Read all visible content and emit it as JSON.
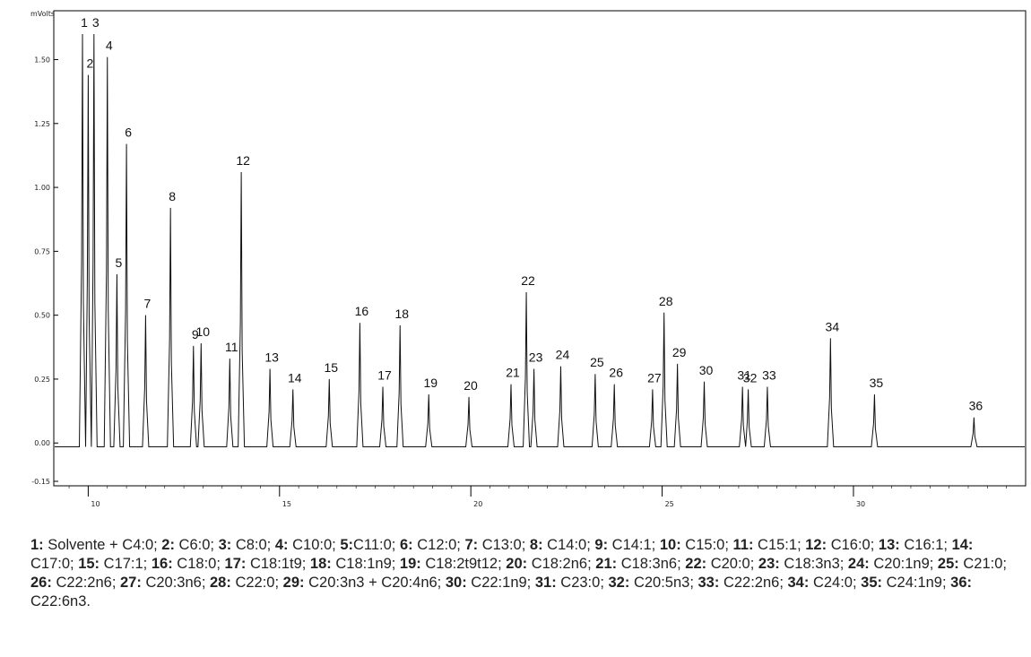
{
  "chart_data": {
    "type": "line",
    "ylabel": "mVolts",
    "ylim": [
      -0.15,
      1.6
    ],
    "xlim": [
      9.1,
      34.5
    ],
    "y_ticks": [
      {
        "value": 1.5,
        "label": "1.50"
      },
      {
        "value": 1.25,
        "label": "1.25"
      },
      {
        "value": 1.0,
        "label": "1.00"
      },
      {
        "value": 0.75,
        "label": "0.75"
      },
      {
        "value": 0.5,
        "label": "0.50"
      },
      {
        "value": 0.25,
        "label": "0.25"
      },
      {
        "value": 0.0,
        "label": "0.00"
      },
      {
        "value": -0.15,
        "label": "-0.15"
      }
    ],
    "x_ticks": [
      {
        "value": 10,
        "label": "10"
      },
      {
        "value": 15,
        "label": "15"
      },
      {
        "value": 20,
        "label": "20"
      },
      {
        "value": 25,
        "label": "25"
      },
      {
        "value": 30,
        "label": "30"
      }
    ],
    "baseline": -0.015,
    "peaks": [
      {
        "label": "1",
        "x": 9.85,
        "y": 1.6
      },
      {
        "label": "2",
        "x": 10.0,
        "y": 1.44
      },
      {
        "label": "3",
        "x": 10.15,
        "y": 1.6
      },
      {
        "label": "4",
        "x": 10.5,
        "y": 1.51
      },
      {
        "label": "5",
        "x": 10.75,
        "y": 0.66
      },
      {
        "label": "6",
        "x": 11.0,
        "y": 1.17
      },
      {
        "label": "7",
        "x": 11.5,
        "y": 0.5
      },
      {
        "label": "8",
        "x": 12.15,
        "y": 0.92
      },
      {
        "label": "9",
        "x": 12.75,
        "y": 0.38
      },
      {
        "label": "10",
        "x": 12.95,
        "y": 0.39
      },
      {
        "label": "11",
        "x": 13.7,
        "y": 0.33
      },
      {
        "label": "12",
        "x": 14.0,
        "y": 1.06
      },
      {
        "label": "13",
        "x": 14.75,
        "y": 0.29
      },
      {
        "label": "14",
        "x": 15.35,
        "y": 0.21
      },
      {
        "label": "15",
        "x": 16.3,
        "y": 0.25
      },
      {
        "label": "16",
        "x": 17.1,
        "y": 0.47
      },
      {
        "label": "17",
        "x": 17.7,
        "y": 0.22
      },
      {
        "label": "18",
        "x": 18.15,
        "y": 0.46
      },
      {
        "label": "19",
        "x": 18.9,
        "y": 0.19
      },
      {
        "label": "20",
        "x": 19.95,
        "y": 0.18
      },
      {
        "label": "21",
        "x": 21.05,
        "y": 0.23
      },
      {
        "label": "22",
        "x": 21.45,
        "y": 0.59
      },
      {
        "label": "23",
        "x": 21.65,
        "y": 0.29
      },
      {
        "label": "24",
        "x": 22.35,
        "y": 0.3
      },
      {
        "label": "25",
        "x": 23.25,
        "y": 0.27
      },
      {
        "label": "26",
        "x": 23.75,
        "y": 0.23
      },
      {
        "label": "27",
        "x": 24.75,
        "y": 0.21
      },
      {
        "label": "28",
        "x": 25.05,
        "y": 0.51
      },
      {
        "label": "29",
        "x": 25.4,
        "y": 0.31
      },
      {
        "label": "30",
        "x": 26.1,
        "y": 0.24
      },
      {
        "label": "31",
        "x": 27.1,
        "y": 0.22
      },
      {
        "label": "32",
        "x": 27.25,
        "y": 0.21
      },
      {
        "label": "33",
        "x": 27.75,
        "y": 0.22
      },
      {
        "label": "34",
        "x": 29.4,
        "y": 0.41
      },
      {
        "label": "35",
        "x": 30.55,
        "y": 0.19
      },
      {
        "label": "36",
        "x": 33.15,
        "y": 0.1
      }
    ]
  },
  "legend": [
    {
      "num": "1:",
      "text": " Solvente + C4:0; "
    },
    {
      "num": "2:",
      "text": " C6:0; "
    },
    {
      "num": "3:",
      "text": " C8:0; "
    },
    {
      "num": "4:",
      "text": " C10:0; "
    },
    {
      "num": "5:",
      "text": "C11:0; "
    },
    {
      "num": "6:",
      "text": " C12:0; "
    },
    {
      "num": "7:",
      "text": " C13:0; "
    },
    {
      "num": "8:",
      "text": " C14:0; "
    },
    {
      "num": "9:",
      "text": " C14:1; "
    },
    {
      "num": "10:",
      "text": " C15:0; "
    },
    {
      "num": "11:",
      "text": " C15:1; "
    },
    {
      "num": "12:",
      "text": " C16:0; "
    },
    {
      "num": "13:",
      "text": " C16:1; "
    },
    {
      "num": "14:",
      "text": " C17:0; "
    },
    {
      "num": "15:",
      "text": " C17:1; "
    },
    {
      "num": "16:",
      "text": " C18:0; "
    },
    {
      "num": "17:",
      "text": " C18:1t9; "
    },
    {
      "num": "18:",
      "text": " C18:1n9; "
    },
    {
      "num": "19:",
      "text": " C18:2t9t12; "
    },
    {
      "num": "20:",
      "text": " C18:2n6; "
    },
    {
      "num": "21:",
      "text": " C18:3n6; "
    },
    {
      "num": "22:",
      "text": " C20:0; "
    },
    {
      "num": "23:",
      "text": " C18:3n3; "
    },
    {
      "num": "24:",
      "text": " C20:1n9; "
    },
    {
      "num": "25:",
      "text": " C21:0; "
    },
    {
      "num": "26:",
      "text": " C22:2n6; "
    },
    {
      "num": "27:",
      "text": " C20:3n6; "
    },
    {
      "num": "28:",
      "text": " C22:0; "
    },
    {
      "num": "29:",
      "text": " C20:3n3 + C20:4n6; "
    },
    {
      "num": "30:",
      "text": " C22:1n9; "
    },
    {
      "num": "31:",
      "text": " C23:0; "
    },
    {
      "num": "32:",
      "text": " C20:5n3; "
    },
    {
      "num": "33:",
      "text": " C22:2n6; "
    },
    {
      "num": "34:",
      "text": " C24:0; "
    },
    {
      "num": "35:",
      "text": " C24:1n9; "
    },
    {
      "num": "36:",
      "text": " C22:6n3."
    }
  ]
}
